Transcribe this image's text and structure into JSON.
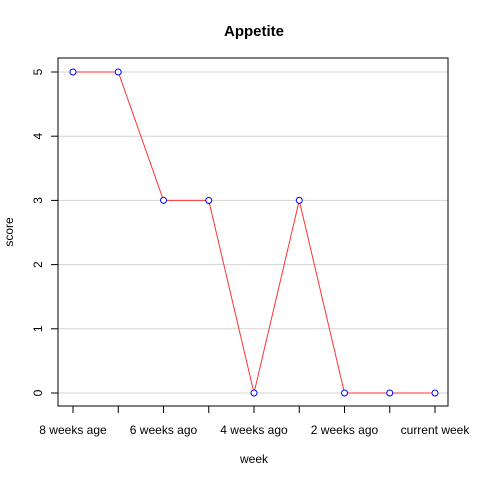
{
  "chart_data": {
    "type": "line",
    "title": "Appetite",
    "xlabel": "week",
    "ylabel": "score",
    "x_tick_labels": [
      "8 weeks age",
      "6 weeks ago",
      "4 weeks ago",
      "2 weeks ago",
      "current week"
    ],
    "y_tick_labels": [
      "0",
      "1",
      "2",
      "3",
      "4",
      "5"
    ],
    "ylim": [
      0,
      5
    ],
    "grid": "horizontal",
    "series": [
      {
        "values": [
          5,
          5,
          3,
          3,
          0,
          3,
          0,
          0,
          0
        ],
        "line_color": "#ff3333",
        "marker_color": "#0000ff"
      }
    ]
  }
}
